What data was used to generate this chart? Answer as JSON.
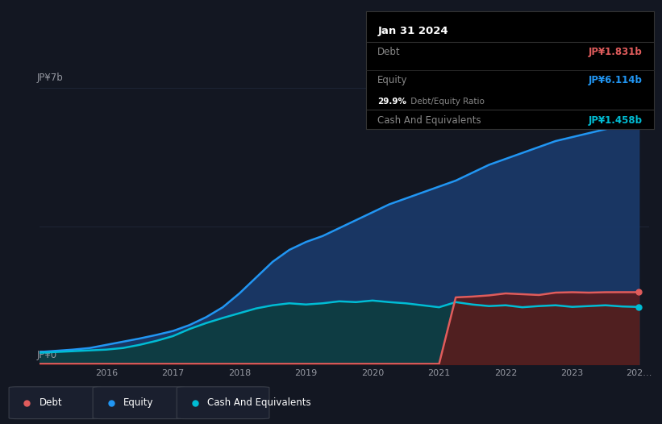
{
  "background_color": "#131722",
  "plot_bg_color": "#131722",
  "grid_color": "#1e2535",
  "text_color": "#9598a1",
  "title_label": "JP¥7b",
  "zero_label": "JP¥0",
  "debt_color": "#e05c5c",
  "equity_color": "#2196f3",
  "cash_color": "#00bcd4",
  "equity_fill_color": "#1a3a6b",
  "cash_fill_color": "#0d3d40",
  "debt_fill_color": "#5c1a1a",
  "info_date": "Jan 31 2024",
  "info_debt_label": "Debt",
  "info_debt_value": "JP¥1.831b",
  "info_equity_label": "Equity",
  "info_equity_value": "JP¥6.114b",
  "info_ratio_bold": "29.9%",
  "info_ratio_rest": " Debt/Equity Ratio",
  "info_cash_label": "Cash And Equivalents",
  "info_cash_value": "JP¥1.458b",
  "legend_debt": "Debt",
  "legend_equity": "Equity",
  "legend_cash": "Cash And Equivalents",
  "years": [
    2015.0,
    2015.25,
    2015.5,
    2015.75,
    2016.0,
    2016.25,
    2016.5,
    2016.75,
    2017.0,
    2017.25,
    2017.5,
    2017.75,
    2018.0,
    2018.25,
    2018.5,
    2018.75,
    2019.0,
    2019.25,
    2019.5,
    2019.75,
    2020.0,
    2020.25,
    2020.5,
    2020.75,
    2021.0,
    2021.25,
    2021.5,
    2021.75,
    2022.0,
    2022.25,
    2022.5,
    2022.75,
    2023.0,
    2023.25,
    2023.5,
    2023.75,
    2024.0
  ],
  "equity": [
    0.32,
    0.35,
    0.38,
    0.42,
    0.5,
    0.58,
    0.66,
    0.75,
    0.85,
    1.0,
    1.2,
    1.45,
    1.8,
    2.2,
    2.6,
    2.9,
    3.1,
    3.25,
    3.45,
    3.65,
    3.85,
    4.05,
    4.2,
    4.35,
    4.5,
    4.65,
    4.85,
    5.05,
    5.2,
    5.35,
    5.5,
    5.65,
    5.75,
    5.85,
    5.95,
    6.05,
    6.114
  ],
  "cash": [
    0.3,
    0.32,
    0.34,
    0.36,
    0.38,
    0.42,
    0.5,
    0.6,
    0.72,
    0.9,
    1.05,
    1.18,
    1.3,
    1.42,
    1.5,
    1.55,
    1.52,
    1.55,
    1.6,
    1.58,
    1.62,
    1.58,
    1.55,
    1.5,
    1.45,
    1.58,
    1.52,
    1.48,
    1.5,
    1.45,
    1.48,
    1.5,
    1.46,
    1.48,
    1.5,
    1.47,
    1.458
  ],
  "debt": [
    0.02,
    0.02,
    0.02,
    0.02,
    0.02,
    0.02,
    0.02,
    0.02,
    0.02,
    0.02,
    0.02,
    0.02,
    0.02,
    0.02,
    0.02,
    0.02,
    0.02,
    0.02,
    0.02,
    0.02,
    0.02,
    0.02,
    0.02,
    0.02,
    0.02,
    1.7,
    1.72,
    1.75,
    1.8,
    1.78,
    1.76,
    1.82,
    1.83,
    1.82,
    1.83,
    1.831,
    1.831
  ],
  "ylim": [
    0,
    7.5
  ],
  "xlim": [
    2015.0,
    2024.15
  ],
  "x_positions": [
    2016,
    2017,
    2018,
    2019,
    2020,
    2021,
    2022,
    2023
  ],
  "x_labels": [
    "2016",
    "2017",
    "2018",
    "2019",
    "2020",
    "2021",
    "2022",
    "2023"
  ],
  "x_last_pos": 2024.0,
  "x_last_label": "202…"
}
